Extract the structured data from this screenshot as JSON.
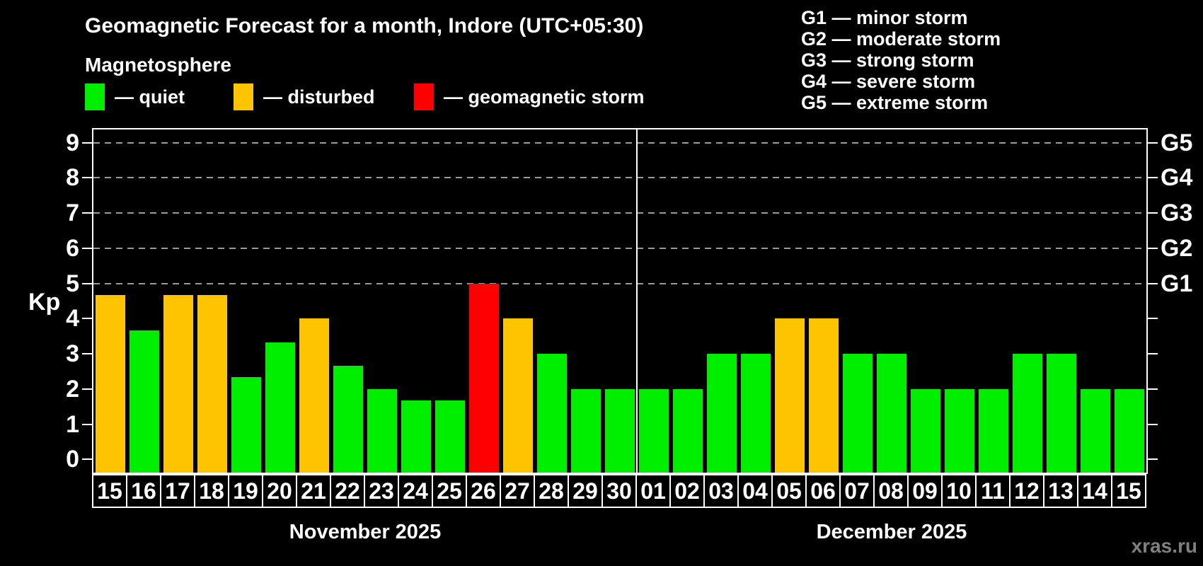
{
  "header": {
    "title": "Geomagnetic Forecast for a month, Indore (UTC+05:30)",
    "subtitle": "Magnetosphere",
    "legend": [
      {
        "name": "quiet",
        "label": "— quiet",
        "color": "#00ee00"
      },
      {
        "name": "disturbed",
        "label": "— disturbed",
        "color": "#ffc400"
      },
      {
        "name": "storm",
        "label": "— geomagnetic storm",
        "color": "#ff0000"
      }
    ],
    "g_legend": [
      "G1 — minor storm",
      "G2 — moderate storm",
      "G3 — strong storm",
      "G4 — severe storm",
      "G5 — extreme storm"
    ]
  },
  "footer": {
    "watermark": "xras.ru"
  },
  "chart_data": {
    "type": "bar",
    "title": "Geomagnetic Forecast for a month, Indore (UTC+05:30)",
    "ylabel": "Kp",
    "xlabel": "",
    "ylim": [
      -0.375,
      9.375
    ],
    "yticks": [
      0,
      1,
      2,
      3,
      4,
      5,
      6,
      7,
      8,
      9
    ],
    "gridlines_at": [
      5,
      6,
      7,
      8,
      9
    ],
    "grid": "dashed-gray",
    "legend_position": "top",
    "right_labels": [
      {
        "value": 5,
        "label": "G1"
      },
      {
        "value": 6,
        "label": "G2"
      },
      {
        "value": 7,
        "label": "G3"
      },
      {
        "value": 8,
        "label": "G4"
      },
      {
        "value": 9,
        "label": "G5"
      }
    ],
    "colors": {
      "quiet": "#00ee00",
      "disturbed": "#ffc400",
      "storm": "#ff0000"
    },
    "months": [
      {
        "label": "November 2025",
        "days": [
          {
            "day": "15",
            "value": 4.67,
            "status": "disturbed"
          },
          {
            "day": "16",
            "value": 3.67,
            "status": "quiet"
          },
          {
            "day": "17",
            "value": 4.67,
            "status": "disturbed"
          },
          {
            "day": "18",
            "value": 4.67,
            "status": "disturbed"
          },
          {
            "day": "19",
            "value": 2.33,
            "status": "quiet"
          },
          {
            "day": "20",
            "value": 3.33,
            "status": "quiet"
          },
          {
            "day": "21",
            "value": 4,
            "status": "disturbed"
          },
          {
            "day": "22",
            "value": 2.67,
            "status": "quiet"
          },
          {
            "day": "23",
            "value": 2,
            "status": "quiet"
          },
          {
            "day": "24",
            "value": 1.67,
            "status": "quiet"
          },
          {
            "day": "25",
            "value": 1.67,
            "status": "quiet"
          },
          {
            "day": "26",
            "value": 5,
            "status": "storm"
          },
          {
            "day": "27",
            "value": 4,
            "status": "disturbed"
          },
          {
            "day": "28",
            "value": 3,
            "status": "quiet"
          },
          {
            "day": "29",
            "value": 2,
            "status": "quiet"
          },
          {
            "day": "30",
            "value": 2,
            "status": "quiet"
          }
        ]
      },
      {
        "label": "December 2025",
        "days": [
          {
            "day": "01",
            "value": 2,
            "status": "quiet"
          },
          {
            "day": "02",
            "value": 2,
            "status": "quiet"
          },
          {
            "day": "03",
            "value": 3,
            "status": "quiet"
          },
          {
            "day": "04",
            "value": 3,
            "status": "quiet"
          },
          {
            "day": "05",
            "value": 4,
            "status": "disturbed"
          },
          {
            "day": "06",
            "value": 4,
            "status": "disturbed"
          },
          {
            "day": "07",
            "value": 3,
            "status": "quiet"
          },
          {
            "day": "08",
            "value": 3,
            "status": "quiet"
          },
          {
            "day": "09",
            "value": 2,
            "status": "quiet"
          },
          {
            "day": "10",
            "value": 2,
            "status": "quiet"
          },
          {
            "day": "11",
            "value": 2,
            "status": "quiet"
          },
          {
            "day": "12",
            "value": 3,
            "status": "quiet"
          },
          {
            "day": "13",
            "value": 3,
            "status": "quiet"
          },
          {
            "day": "14",
            "value": 2,
            "status": "quiet"
          },
          {
            "day": "15",
            "value": 2,
            "status": "quiet"
          }
        ]
      }
    ]
  }
}
